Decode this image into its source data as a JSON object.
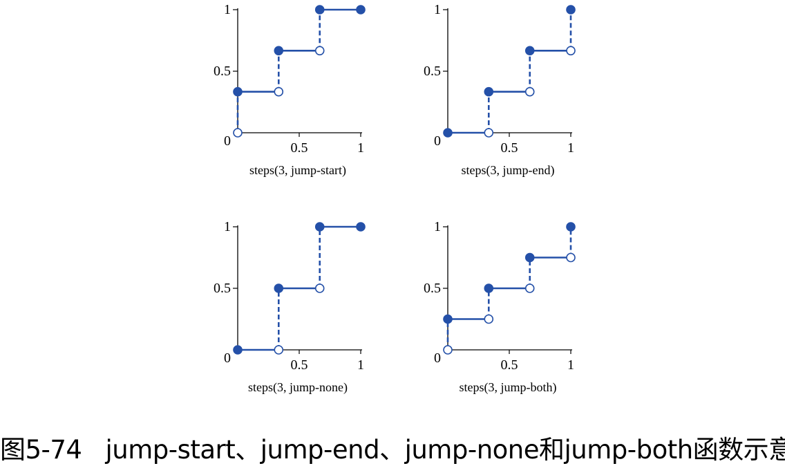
{
  "chart_data": [
    {
      "type": "line",
      "xlabel": "steps(3, jump-start)",
      "xticks": [
        "0.5",
        "1"
      ],
      "yticks": [
        "0",
        "0.5",
        "1"
      ],
      "xlim": [
        0,
        1
      ],
      "ylim": [
        0,
        1
      ],
      "segments": [
        {
          "x": [
            0,
            0.333
          ],
          "y": [
            0.333,
            0.333
          ]
        },
        {
          "x": [
            0.333,
            0.667
          ],
          "y": [
            0.667,
            0.667
          ]
        },
        {
          "x": [
            0.667,
            1
          ],
          "y": [
            1,
            1
          ]
        }
      ],
      "jumps": [
        {
          "x": 0,
          "y": [
            0,
            0.333
          ]
        },
        {
          "x": 0.333,
          "y": [
            0.333,
            0.667
          ]
        },
        {
          "x": 0.667,
          "y": [
            0.667,
            1
          ]
        }
      ],
      "filled_points": [
        [
          0,
          0.333
        ],
        [
          0.333,
          0.667
        ],
        [
          0.667,
          1
        ],
        [
          1,
          1
        ]
      ],
      "open_points": [
        [
          0,
          0
        ],
        [
          0.333,
          0.333
        ],
        [
          0.667,
          0.667
        ]
      ]
    },
    {
      "type": "line",
      "xlabel": "steps(3, jump-end)",
      "xticks": [
        "0.5",
        "1"
      ],
      "yticks": [
        "0",
        "0.5",
        "1"
      ],
      "xlim": [
        0,
        1
      ],
      "ylim": [
        0,
        1
      ],
      "segments": [
        {
          "x": [
            0,
            0.333
          ],
          "y": [
            0,
            0
          ]
        },
        {
          "x": [
            0.333,
            0.667
          ],
          "y": [
            0.333,
            0.333
          ]
        },
        {
          "x": [
            0.667,
            1
          ],
          "y": [
            0.667,
            0.667
          ]
        }
      ],
      "jumps": [
        {
          "x": 0.333,
          "y": [
            0,
            0.333
          ]
        },
        {
          "x": 0.667,
          "y": [
            0.333,
            0.667
          ]
        },
        {
          "x": 1,
          "y": [
            0.667,
            1
          ]
        }
      ],
      "filled_points": [
        [
          0,
          0
        ],
        [
          0.333,
          0.333
        ],
        [
          0.667,
          0.667
        ],
        [
          1,
          1
        ]
      ],
      "open_points": [
        [
          0.333,
          0
        ],
        [
          0.667,
          0.333
        ],
        [
          1,
          0.667
        ]
      ]
    },
    {
      "type": "line",
      "xlabel": "steps(3, jump-none)",
      "xticks": [
        "0.5",
        "1"
      ],
      "yticks": [
        "0",
        "0.5",
        "1"
      ],
      "xlim": [
        0,
        1
      ],
      "ylim": [
        0,
        1
      ],
      "segments": [
        {
          "x": [
            0,
            0.333
          ],
          "y": [
            0,
            0
          ]
        },
        {
          "x": [
            0.333,
            0.667
          ],
          "y": [
            0.5,
            0.5
          ]
        },
        {
          "x": [
            0.667,
            1
          ],
          "y": [
            1,
            1
          ]
        }
      ],
      "jumps": [
        {
          "x": 0.333,
          "y": [
            0,
            0.5
          ]
        },
        {
          "x": 0.667,
          "y": [
            0.5,
            1
          ]
        }
      ],
      "filled_points": [
        [
          0,
          0
        ],
        [
          0.333,
          0.5
        ],
        [
          0.667,
          1
        ],
        [
          1,
          1
        ]
      ],
      "open_points": [
        [
          0.333,
          0
        ],
        [
          0.667,
          0.5
        ]
      ]
    },
    {
      "type": "line",
      "xlabel": "steps(3, jump-both)",
      "xticks": [
        "0.5",
        "1"
      ],
      "yticks": [
        "0",
        "0.5",
        "1"
      ],
      "xlim": [
        0,
        1
      ],
      "ylim": [
        0,
        1
      ],
      "segments": [
        {
          "x": [
            0,
            0.333
          ],
          "y": [
            0.25,
            0.25
          ]
        },
        {
          "x": [
            0.333,
            0.667
          ],
          "y": [
            0.5,
            0.5
          ]
        },
        {
          "x": [
            0.667,
            1
          ],
          "y": [
            0.75,
            0.75
          ]
        }
      ],
      "jumps": [
        {
          "x": 0,
          "y": [
            0,
            0.25
          ]
        },
        {
          "x": 0.333,
          "y": [
            0.25,
            0.5
          ]
        },
        {
          "x": 0.667,
          "y": [
            0.5,
            0.75
          ]
        },
        {
          "x": 1,
          "y": [
            0.75,
            1
          ]
        }
      ],
      "filled_points": [
        [
          0,
          0.25
        ],
        [
          0.333,
          0.5
        ],
        [
          0.667,
          0.75
        ],
        [
          1,
          1
        ]
      ],
      "open_points": [
        [
          0,
          0
        ],
        [
          0.333,
          0.25
        ],
        [
          0.667,
          0.5
        ],
        [
          1,
          0.75
        ]
      ]
    }
  ],
  "colors": {
    "series": "#2450a8",
    "axis": "#000000"
  },
  "caption": {
    "figure_number": "图5-74",
    "text": "jump-start、jump-end、jump-none和jump-both函数示意"
  }
}
